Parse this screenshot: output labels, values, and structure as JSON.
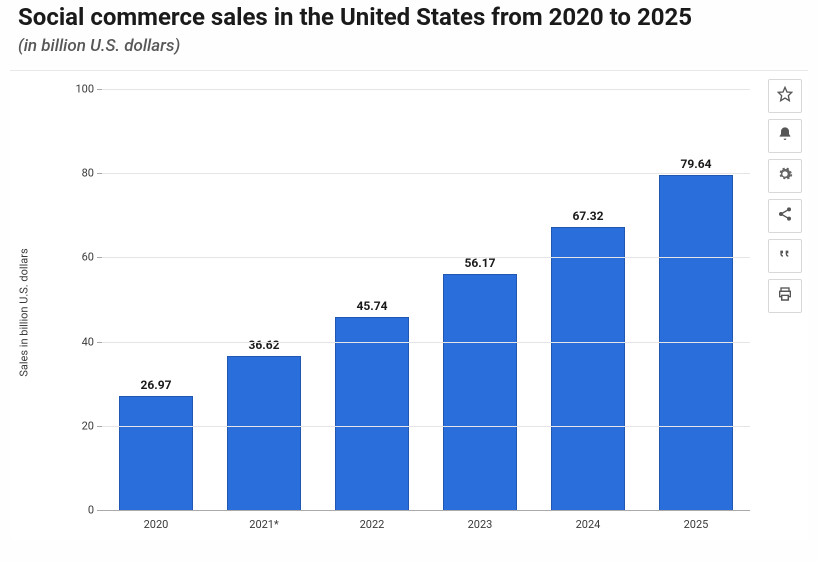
{
  "header": {
    "title": "Social commerce sales in the United States from 2020 to 2025",
    "subtitle": "(in billion U.S. dollars)"
  },
  "toolbar": {
    "favorite": "favorite",
    "alert": "alert",
    "settings": "settings",
    "share": "share",
    "cite": "cite",
    "print": "print"
  },
  "chart": {
    "type": "bar",
    "y_axis_label": "Sales in billion U.S. dollars",
    "ylim": [
      0,
      100
    ],
    "ytick_step": 20,
    "yticks": [
      0,
      20,
      40,
      60,
      80,
      100
    ],
    "categories": [
      "2020",
      "2021*",
      "2022",
      "2023",
      "2024",
      "2025"
    ],
    "values": [
      26.97,
      36.62,
      45.74,
      56.17,
      67.32,
      79.64
    ],
    "value_labels": [
      "26.97",
      "36.62",
      "45.74",
      "56.17",
      "67.32",
      "79.64"
    ],
    "bar_color": "#2a6edb",
    "bar_border_color": "#1f57b3",
    "bar_width": 0.68,
    "grid_color": "#e5e5e5",
    "axis_color": "#aaaaaa",
    "background_color": "#ffffff",
    "title_fontsize": 24,
    "subtitle_fontsize": 17,
    "label_fontsize": 11,
    "value_fontsize": 12
  }
}
